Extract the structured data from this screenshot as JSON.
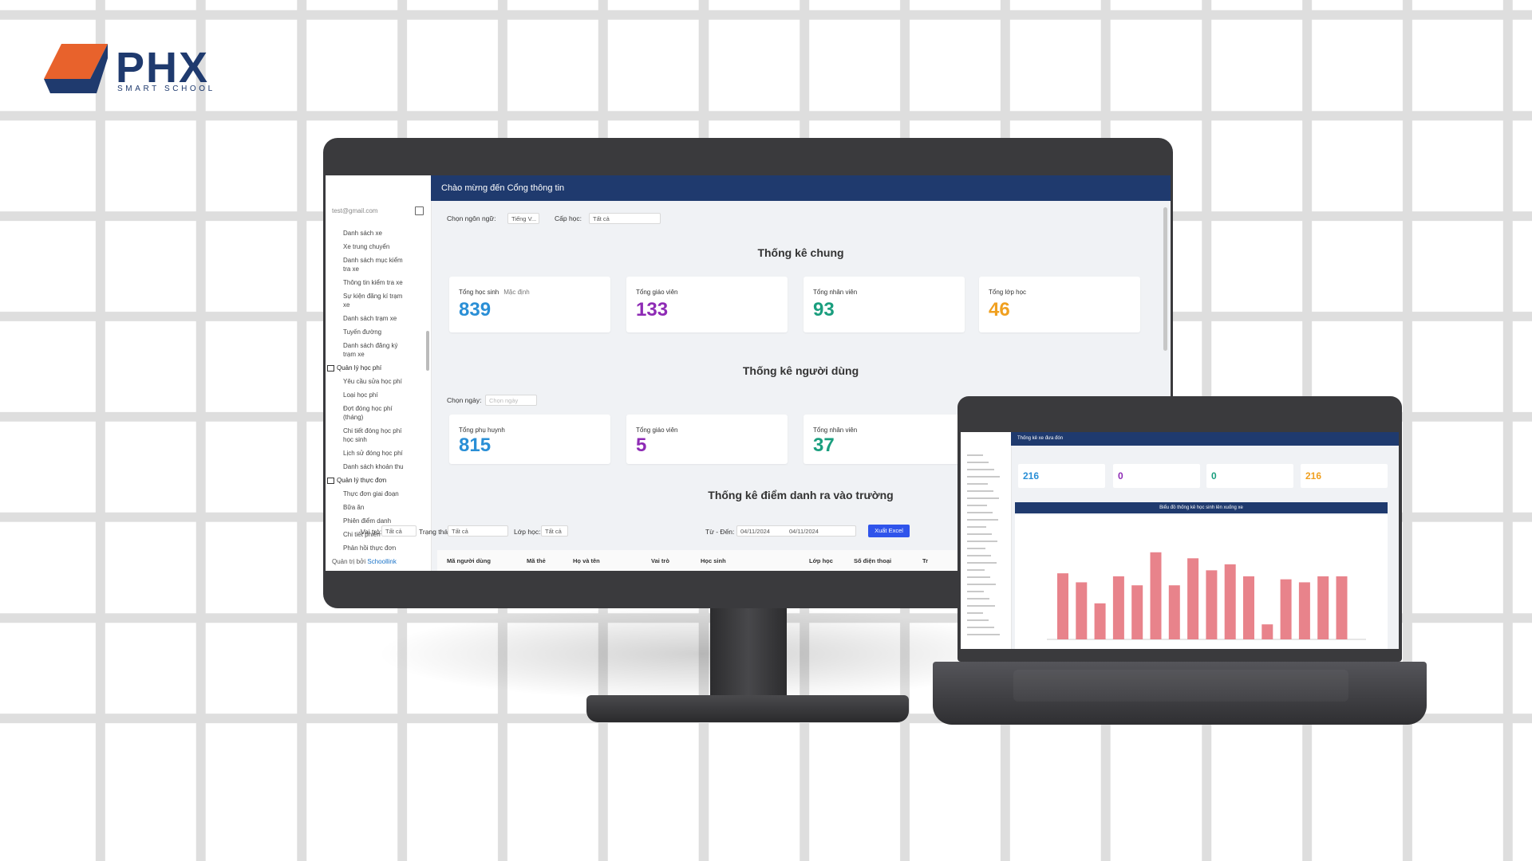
{
  "logo": {
    "brand": "PHX",
    "tagline": "SMART SCHOOL"
  },
  "monitor": {
    "header": "Chào mừng đến Cổng thông tin",
    "user_email": "test@gmail.com",
    "menu": [
      {
        "label": "Danh sách xe",
        "group": false
      },
      {
        "label": "Xe trung chuyển",
        "group": false
      },
      {
        "label": "Danh sách mục kiểm tra xe",
        "group": false
      },
      {
        "label": "Thông tin kiểm tra xe",
        "group": false
      },
      {
        "label": "Sự kiện đăng kí trạm xe",
        "group": false
      },
      {
        "label": "Danh sách trạm xe",
        "group": false
      },
      {
        "label": "Tuyến đường",
        "group": false
      },
      {
        "label": "Danh sách đăng ký trạm xe",
        "group": false
      },
      {
        "label": "Quản lý học phí",
        "group": true
      },
      {
        "label": "Yêu cầu sửa học phí",
        "group": false
      },
      {
        "label": "Loại học phí",
        "group": false
      },
      {
        "label": "Đợt đóng học phí (tháng)",
        "group": false
      },
      {
        "label": "Chi tiết đóng học phí học sinh",
        "group": false
      },
      {
        "label": "Lịch sử đóng học phí",
        "group": false
      },
      {
        "label": "Danh sách khoản thu",
        "group": false
      },
      {
        "label": "Quản lý thực đơn",
        "group": true
      },
      {
        "label": "Thực đơn giai đoạn",
        "group": false
      },
      {
        "label": "Bữa ăn",
        "group": false
      },
      {
        "label": "Phiên điểm danh",
        "group": false
      },
      {
        "label": "Chi tiết phiên",
        "group": false
      },
      {
        "label": "Phản hồi thực đơn",
        "group": false
      }
    ],
    "footer": {
      "text": "Quản trị bởi",
      "link": "Schoollink"
    },
    "filters": {
      "language_label": "Chọn ngôn ngữ:",
      "language_value": "Tiếng V...",
      "level_label": "Cấp học:",
      "level_value": "Tất cả"
    },
    "general": {
      "title": "Thống kê chung",
      "cards": [
        {
          "label": "Tổng học sinh",
          "extra": "Mặc định",
          "value": 839,
          "color": "#2a8fd6"
        },
        {
          "label": "Tổng giáo viên",
          "value": 133,
          "color": "#8e2bb5"
        },
        {
          "label": "Tổng nhân viên",
          "value": 93,
          "color": "#1a9e7e"
        },
        {
          "label": "Tổng lớp học",
          "value": 46,
          "color": "#f0a020"
        }
      ]
    },
    "users": {
      "title": "Thống kê người dùng",
      "date_label": "Chọn ngày:",
      "date_placeholder": "Chọn ngày",
      "cards": [
        {
          "label": "Tổng phụ huynh",
          "value": 815,
          "color": "#2a8fd6"
        },
        {
          "label": "Tổng giáo viên",
          "value": 5,
          "color": "#8e2bb5"
        },
        {
          "label": "Tổng nhân viên",
          "value": 37,
          "color": "#1a9e7e"
        }
      ]
    },
    "attendance": {
      "title": "Thống kê điểm danh ra vào trường",
      "filters": [
        {
          "label": "Vai trò:",
          "value": "Tất cả"
        },
        {
          "label": "Trạng thái:",
          "value": "Tất cả"
        },
        {
          "label": "Lớp học:",
          "value": "Tất cả"
        }
      ],
      "date_label": "Từ - Đến:",
      "from": "04/11/2024",
      "to": "04/11/2024",
      "export": "Xuất Excel",
      "columns": [
        "Mã người dùng",
        "Mã thẻ",
        "Họ và tên",
        "Vai trò",
        "Học sinh",
        "Lớp học",
        "Số điện thoại",
        "Tr"
      ]
    }
  },
  "laptop": {
    "header": "Thống kê xe đưa đón",
    "cards": [
      {
        "value": 216,
        "color": "#2a8fd6"
      },
      {
        "value": 0,
        "color": "#8e2bb5"
      },
      {
        "value": 0,
        "color": "#1a9e7e"
      },
      {
        "value": 216,
        "color": "#f0a020"
      }
    ],
    "chart_title": "Biểu đồ thống kê học sinh lên xuống xe",
    "chart": {
      "type": "bar",
      "values": [
        22,
        19,
        12,
        21,
        18,
        29,
        18,
        27,
        23,
        25,
        21,
        5,
        20,
        19,
        21,
        21
      ],
      "ylim": [
        0,
        30
      ],
      "color": "#e8838b"
    }
  }
}
